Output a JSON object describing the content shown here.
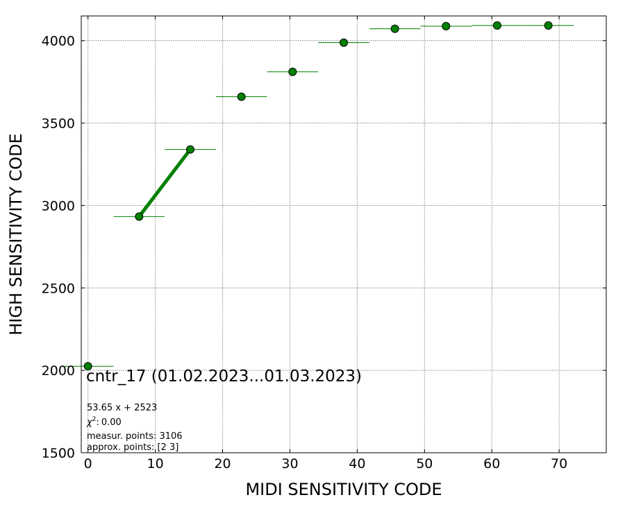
{
  "chart_data": {
    "type": "scatter",
    "xlabel": "MIDI SENSITIVITY CODE",
    "ylabel": "HIGH SENSITIVITY CODE",
    "xlim": [
      -1,
      77
    ],
    "ylim": [
      1500,
      4150
    ],
    "xticks": [
      0,
      10,
      20,
      30,
      40,
      50,
      60,
      70
    ],
    "yticks": [
      1500,
      2000,
      2500,
      3000,
      3500,
      4000
    ],
    "grid": true,
    "series": [
      {
        "marker_color": "#008000",
        "points": [
          {
            "x": 0,
            "y": 2025,
            "xerr": 3.8
          },
          {
            "x": 7.6,
            "y": 2933,
            "xerr": 3.8
          },
          {
            "x": 15.2,
            "y": 3340,
            "xerr": 3.8
          },
          {
            "x": 22.8,
            "y": 3660,
            "xerr": 3.8
          },
          {
            "x": 30.4,
            "y": 3811,
            "xerr": 3.8
          },
          {
            "x": 38.0,
            "y": 3988,
            "xerr": 3.8
          },
          {
            "x": 45.6,
            "y": 4072,
            "xerr": 3.8
          },
          {
            "x": 53.2,
            "y": 4088,
            "xerr": 3.8
          },
          {
            "x": 60.8,
            "y": 4092,
            "xerr": 3.8
          },
          {
            "x": 68.4,
            "y": 4092,
            "xerr": 3.8
          }
        ]
      }
    ],
    "fit_line": {
      "x": [
        7.6,
        15.2
      ],
      "y": [
        2933,
        3340
      ],
      "color": "#008000"
    },
    "annotation_title": "cntr_17 (01.02.2023...01.03.2023)",
    "annotation_lines": [
      "53.65 x + 2523",
      "0.00",
      "measur. points: 3106",
      "approx. points: [2 3]"
    ],
    "chi_symbol": "χ",
    "chi_exponent": "2",
    "chi_colon": ":"
  }
}
